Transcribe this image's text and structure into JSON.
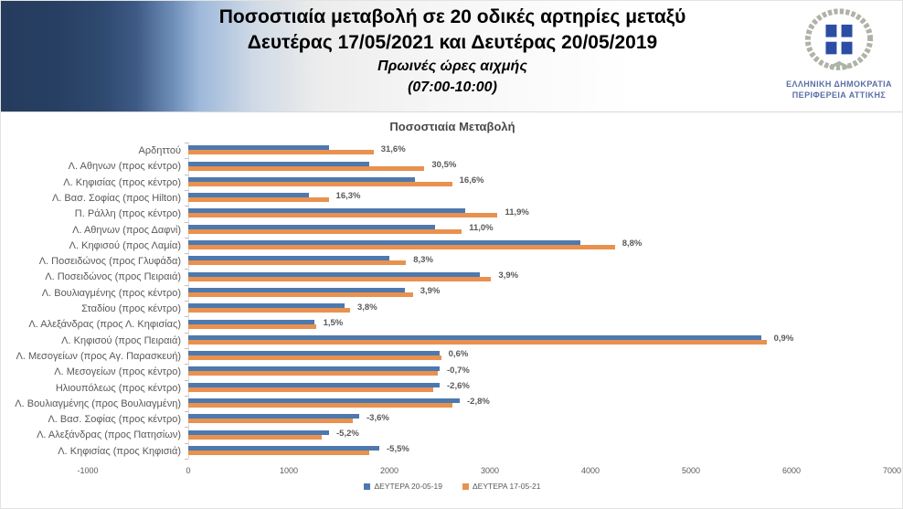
{
  "header": {
    "title_line1": "Ποσοστιαία μεταβολή σε 20 οδικές αρτηρίες μεταξύ",
    "title_line2": "Δευτέρας 17/05/2021 και Δευτέρας 20/05/2019",
    "subtitle": "Πρωινές ώρες αιχμής",
    "subtitle2": "(07:00-10:00)",
    "logo_line1": "ΕΛΛΗΝΙΚΗ ΔΗΜΟΚΡΑΤΙΑ",
    "logo_line2": "ΠΕΡΙΦΕΡΕΙΑ ΑΤΤΙΚΗΣ"
  },
  "colors": {
    "series_2019": "#4d79ae",
    "series_2021": "#e9914f",
    "axis_line": "#d9d9d9",
    "tick": "#bfbfbf",
    "label_gray": "#595959",
    "emblem_blue": "#2b4da3",
    "wreath_gray": "#aeb3a7"
  },
  "chart_data": {
    "type": "bar",
    "orientation": "horizontal",
    "title": "Ποσοστιαία Μεταβολή",
    "categories": [
      "Αρδηττού",
      "Λ. Αθηνων (προς κέντρο)",
      "Λ. Κηφισίας  (προς κέντρο)",
      "Λ. Βασ. Σοφίας (προς Hilton)",
      "Π. Ράλλη (προς κέντρο)",
      "Λ. Αθηνων (προς Δαφνί)",
      "Λ. Κηφισού (προς Λαμία)",
      "Λ. Ποσειδώνος (προς Γλυφάδα)",
      "Λ. Ποσειδώνος (προς Πειραιά)",
      "Λ. Βουλιαγμένης (προς κέντρο)",
      "Σταδίου (προς κέντρο)",
      "Λ. Αλεξάνδρας (προς Λ. Κηφισίας)",
      "Λ. Κηφισού (προς Πειραιά)",
      "Λ. Μεσογείων (προς Αγ. Παρασκευή)",
      "Λ. Μεσογείων (προς κέντρο)",
      "Ηλιουπόλεως (προς κέντρο)",
      "Λ. Βουλιαγμένης (προς Βουλιαγμένη)",
      "Λ. Βασ. Σοφίας (προς κέντρο)",
      "Λ. Αλεξάνδρας (προς Πατησίων)",
      "Λ. Κηφισίας  (προς Κηφισιά)"
    ],
    "series": [
      {
        "name": "ΔΕΥΤΕΡΑ 20-05-19",
        "color": "#4d79ae",
        "values": [
          1400,
          1800,
          2250,
          1200,
          2750,
          2450,
          3900,
          2000,
          2900,
          2150,
          1550,
          1250,
          5700,
          2500,
          2500,
          2500,
          2700,
          1700,
          1400,
          1900
        ]
      },
      {
        "name": "ΔΕΥΤΕΡΑ 17-05-21",
        "color": "#e9914f",
        "values": [
          1843,
          2349,
          2624,
          1396,
          3077,
          2720,
          4243,
          2166,
          3013,
          2234,
          1609,
          1269,
          5751,
          2515,
          2483,
          2435,
          2624,
          1639,
          1327,
          1796
        ]
      }
    ],
    "data_labels": [
      "31,6%",
      "30,5%",
      "16,6%",
      "16,3%",
      "11,9%",
      "11,0%",
      "8,8%",
      "8,3%",
      "3,9%",
      "3,9%",
      "3,8%",
      "1,5%",
      "0,9%",
      "0,6%",
      "-0,7%",
      "-2,6%",
      "-2,8%",
      "-3,6%",
      "-5,2%",
      "-5,5%"
    ],
    "xlim": [
      -1000,
      7000
    ],
    "x_ticks": [
      "-1000",
      "0",
      "1000",
      "2000",
      "3000",
      "4000",
      "5000",
      "6000",
      "7000"
    ],
    "grid": false,
    "legend_position": "bottom"
  }
}
